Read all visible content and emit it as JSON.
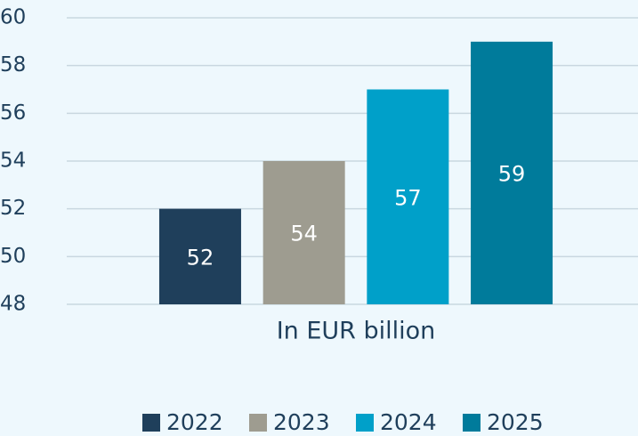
{
  "chart_data": {
    "type": "bar",
    "xlabel": "In EUR billion",
    "series": [
      {
        "name": "2022",
        "color": "#1f3f5b",
        "values": [
          52
        ]
      },
      {
        "name": "2023",
        "color": "#9e9c90",
        "values": [
          54
        ]
      },
      {
        "name": "2024",
        "color": "#00a0c9",
        "values": [
          57
        ]
      },
      {
        "name": "2025",
        "color": "#007b9b",
        "values": [
          59
        ]
      }
    ],
    "ylim": [
      48,
      60
    ],
    "yticks": [
      48,
      50,
      52,
      54,
      56,
      58,
      60
    ],
    "grid": true,
    "legend": "bottom"
  }
}
